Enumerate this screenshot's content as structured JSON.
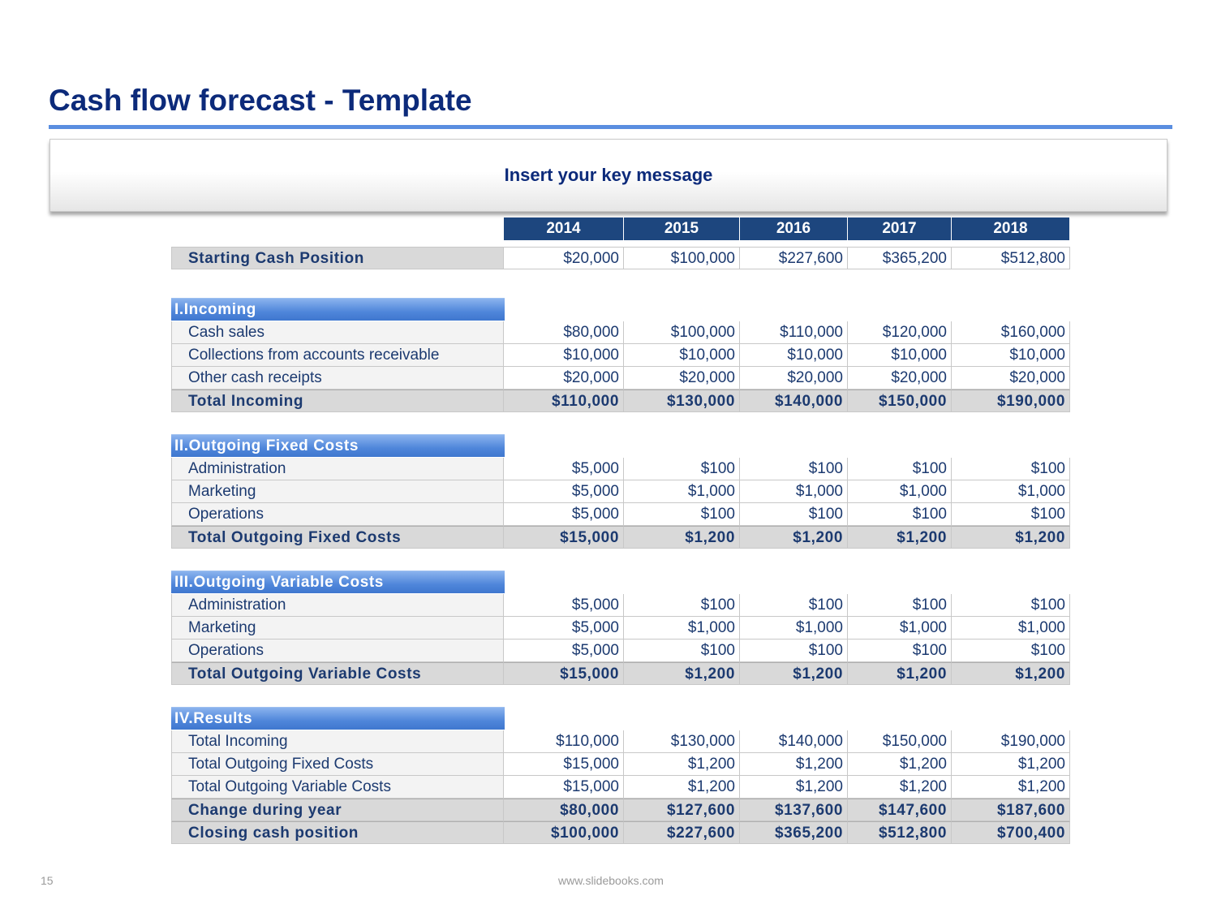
{
  "title": "Cash flow forecast - Template",
  "key_message": "Insert your key message",
  "years": [
    "2014",
    "2015",
    "2016",
    "2017",
    "2018"
  ],
  "starting": {
    "label": "Starting Cash Position",
    "values": [
      "$20,000",
      "$100,000",
      "$227,600",
      "$365,200",
      "$512,800"
    ]
  },
  "incoming": {
    "heading": "I.Incoming",
    "rows": [
      {
        "label": "Cash sales",
        "values": [
          "$80,000",
          "$100,000",
          "$110,000",
          "$120,000",
          "$160,000"
        ]
      },
      {
        "label": "Collections from accounts receivable",
        "values": [
          "$10,000",
          "$10,000",
          "$10,000",
          "$10,000",
          "$10,000"
        ]
      },
      {
        "label": "Other cash receipts",
        "values": [
          "$20,000",
          "$20,000",
          "$20,000",
          "$20,000",
          "$20,000"
        ]
      }
    ],
    "total": {
      "label": "Total Incoming",
      "values": [
        "$110,000",
        "$130,000",
        "$140,000",
        "$150,000",
        "$190,000"
      ]
    }
  },
  "fixed": {
    "heading": "II.Outgoing Fixed Costs",
    "rows": [
      {
        "label": "Administration",
        "values": [
          "$5,000",
          "$100",
          "$100",
          "$100",
          "$100"
        ]
      },
      {
        "label": "Marketing",
        "values": [
          "$5,000",
          "$1,000",
          "$1,000",
          "$1,000",
          "$1,000"
        ]
      },
      {
        "label": "Operations",
        "values": [
          "$5,000",
          "$100",
          "$100",
          "$100",
          "$100"
        ]
      }
    ],
    "total": {
      "label": "Total Outgoing Fixed Costs",
      "values": [
        "$15,000",
        "$1,200",
        "$1,200",
        "$1,200",
        "$1,200"
      ]
    }
  },
  "variable": {
    "heading": "III.Outgoing Variable Costs",
    "rows": [
      {
        "label": "Administration",
        "values": [
          "$5,000",
          "$100",
          "$100",
          "$100",
          "$100"
        ]
      },
      {
        "label": "Marketing",
        "values": [
          "$5,000",
          "$1,000",
          "$1,000",
          "$1,000",
          "$1,000"
        ]
      },
      {
        "label": "Operations",
        "values": [
          "$5,000",
          "$100",
          "$100",
          "$100",
          "$100"
        ]
      }
    ],
    "total": {
      "label": "Total Outgoing Variable Costs",
      "values": [
        "$15,000",
        "$1,200",
        "$1,200",
        "$1,200",
        "$1,200"
      ]
    }
  },
  "results": {
    "heading": "IV.Results",
    "rows": [
      {
        "label": "Total Incoming",
        "values": [
          "$110,000",
          "$130,000",
          "$140,000",
          "$150,000",
          "$190,000"
        ]
      },
      {
        "label": "Total Outgoing Fixed Costs",
        "values": [
          "$15,000",
          "$1,200",
          "$1,200",
          "$1,200",
          "$1,200"
        ]
      },
      {
        "label": "Total Outgoing Variable Costs",
        "values": [
          "$15,000",
          "$1,200",
          "$1,200",
          "$1,200",
          "$1,200"
        ]
      }
    ],
    "change": {
      "label": "Change during year",
      "values": [
        "$80,000",
        "$127,600",
        "$137,600",
        "$147,600",
        "$187,600"
      ]
    },
    "closing": {
      "label": "Closing cash position",
      "values": [
        "$100,000",
        "$227,600",
        "$365,200",
        "$512,800",
        "$700,400"
      ]
    }
  },
  "footer": {
    "page_number": "15",
    "url": "www.slidebooks.com"
  }
}
